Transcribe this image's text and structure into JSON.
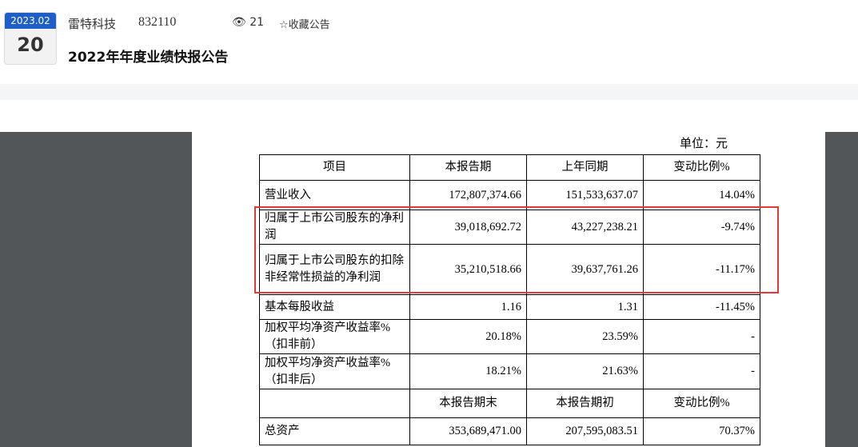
{
  "header": {
    "date_ym": "2023.02",
    "date_day": "20",
    "company": "雷特科技",
    "code": "832110",
    "views": "21",
    "favorite_label": "☆收藏公告",
    "title": "2022年年度业绩快报公告"
  },
  "colors": {
    "accent": "#1d5fc6",
    "highlight": "#e53935",
    "viewer_bg": "#525659"
  },
  "doc": {
    "unit": "单位：元",
    "headers": [
      "项目",
      "本报告期",
      "上年同期",
      "变动比例%"
    ],
    "rows": [
      [
        "营业收入",
        "172,807,374.66",
        "151,533,637.07",
        "14.04%"
      ],
      [
        "归属于上市公司股东的净利润",
        "39,018,692.72",
        "43,227,238.21",
        "-9.74%"
      ],
      [
        "归属于上市公司股东的扣除非经常性损益的净利润",
        "35,210,518.66",
        "39,637,761.26",
        "-11.17%"
      ],
      [
        "基本每股收益",
        "1.16",
        "1.31",
        "-11.45%"
      ],
      [
        "加权平均净资产收益率%（扣非前）",
        "20.18%",
        "23.59%",
        "-"
      ],
      [
        "加权平均净资产收益率%（扣非后）",
        "18.21%",
        "21.63%",
        "-"
      ]
    ],
    "headers2": [
      "",
      "本报告期末",
      "本报告期初",
      "变动比例%"
    ],
    "rows2": [
      [
        "总资产",
        "353,689,471.00",
        "207,595,083.51",
        "70.37%"
      ]
    ]
  }
}
